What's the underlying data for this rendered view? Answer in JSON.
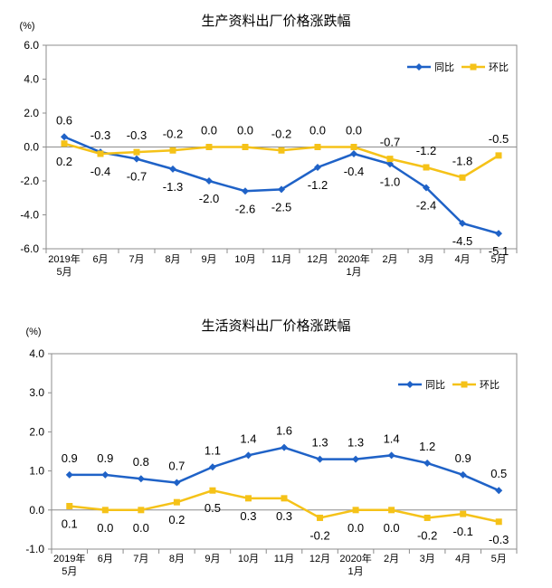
{
  "chart_data": [
    {
      "type": "line",
      "title": "生产资料出厂价格涨跌幅",
      "unit_label": "(%)",
      "ylim": [
        -6.0,
        6.0
      ],
      "yticks": [
        "6.0",
        "4.0",
        "2.0",
        "0.0",
        "-2.0",
        "-4.0",
        "-6.0"
      ],
      "grid": false,
      "legend_position": "top-right",
      "categories": [
        {
          "line1": "2019年",
          "line2": "5月"
        },
        {
          "line1": "6月",
          "line2": ""
        },
        {
          "line1": "7月",
          "line2": ""
        },
        {
          "line1": "8月",
          "line2": ""
        },
        {
          "line1": "9月",
          "line2": ""
        },
        {
          "line1": "10月",
          "line2": ""
        },
        {
          "line1": "11月",
          "line2": ""
        },
        {
          "line1": "12月",
          "line2": ""
        },
        {
          "line1": "2020年",
          "line2": "1月"
        },
        {
          "line1": "2月",
          "line2": ""
        },
        {
          "line1": "3月",
          "line2": ""
        },
        {
          "line1": "4月",
          "line2": ""
        },
        {
          "line1": "5月",
          "line2": ""
        }
      ],
      "series": [
        {
          "name": "同比",
          "color": "#1f62c7",
          "marker": "diamond",
          "values": [
            0.6,
            -0.3,
            -0.7,
            -1.3,
            -2.0,
            -2.6,
            -2.5,
            -1.2,
            -0.4,
            -1.0,
            -2.4,
            -4.5,
            -5.1
          ],
          "labels": [
            "0.6",
            "-0.3",
            "-0.7",
            "-1.3",
            "-2.0",
            "-2.6",
            "-2.5",
            "-1.2",
            "-0.4",
            "-1.0",
            "-2.4",
            "-4.5",
            "-5.1"
          ],
          "label_pos": [
            "above",
            "above",
            "below",
            "below",
            "below",
            "below",
            "below",
            "below",
            "below",
            "below",
            "below",
            "below",
            "below"
          ]
        },
        {
          "name": "环比",
          "color": "#f5c218",
          "marker": "square",
          "values": [
            0.2,
            -0.4,
            -0.3,
            -0.2,
            0.0,
            0.0,
            -0.2,
            0.0,
            0.0,
            -0.7,
            -1.2,
            -1.8,
            -0.5
          ],
          "labels": [
            "0.2",
            "-0.4",
            "-0.3",
            "-0.2",
            "0.0",
            "0.0",
            "-0.2",
            "0.0",
            "0.0",
            "-0.7",
            "-1.2",
            "-1.8",
            "-0.5"
          ],
          "label_pos": [
            "below",
            "below",
            "above",
            "above",
            "above",
            "above",
            "above",
            "above",
            "above",
            "above",
            "above",
            "above",
            "above"
          ]
        }
      ]
    },
    {
      "type": "line",
      "title": "生活资料出厂价格涨跌幅",
      "unit_label": "(%)",
      "ylim": [
        -1.0,
        4.0
      ],
      "yticks": [
        "4.0",
        "3.0",
        "2.0",
        "1.0",
        "0.0",
        "-1.0"
      ],
      "grid": false,
      "legend_position": "top-right",
      "categories": [
        {
          "line1": "2019年",
          "line2": "5月"
        },
        {
          "line1": "6月",
          "line2": ""
        },
        {
          "line1": "7月",
          "line2": ""
        },
        {
          "line1": "8月",
          "line2": ""
        },
        {
          "line1": "9月",
          "line2": ""
        },
        {
          "line1": "10月",
          "line2": ""
        },
        {
          "line1": "11月",
          "line2": ""
        },
        {
          "line1": "12月",
          "line2": ""
        },
        {
          "line1": "2020年",
          "line2": "1月"
        },
        {
          "line1": "2月",
          "line2": ""
        },
        {
          "line1": "3月",
          "line2": ""
        },
        {
          "line1": "4月",
          "line2": ""
        },
        {
          "line1": "5月",
          "line2": ""
        }
      ],
      "series": [
        {
          "name": "同比",
          "color": "#1f62c7",
          "marker": "diamond",
          "values": [
            0.9,
            0.9,
            0.8,
            0.7,
            1.1,
            1.4,
            1.6,
            1.3,
            1.3,
            1.4,
            1.2,
            0.9,
            0.5
          ],
          "labels": [
            "0.9",
            "0.9",
            "0.8",
            "0.7",
            "1.1",
            "1.4",
            "1.6",
            "1.3",
            "1.3",
            "1.4",
            "1.2",
            "0.9",
            "0.5"
          ],
          "label_pos": [
            "above",
            "above",
            "above",
            "above",
            "above",
            "above",
            "above",
            "above",
            "above",
            "above",
            "above",
            "above",
            "above"
          ]
        },
        {
          "name": "环比",
          "color": "#f5c218",
          "marker": "square",
          "values": [
            0.1,
            0.0,
            0.0,
            0.2,
            0.5,
            0.3,
            0.3,
            -0.2,
            0.0,
            0.0,
            -0.2,
            -0.1,
            -0.3
          ],
          "labels": [
            "0.1",
            "0.0",
            "0.0",
            "0.2",
            "0.5",
            "0.3",
            "0.3",
            "-0.2",
            "0.0",
            "0.0",
            "-0.2",
            "-0.1",
            "-0.3"
          ],
          "label_pos": [
            "below",
            "below",
            "below",
            "below",
            "below",
            "below",
            "below",
            "below",
            "below",
            "below",
            "below",
            "below",
            "below"
          ]
        }
      ]
    }
  ]
}
